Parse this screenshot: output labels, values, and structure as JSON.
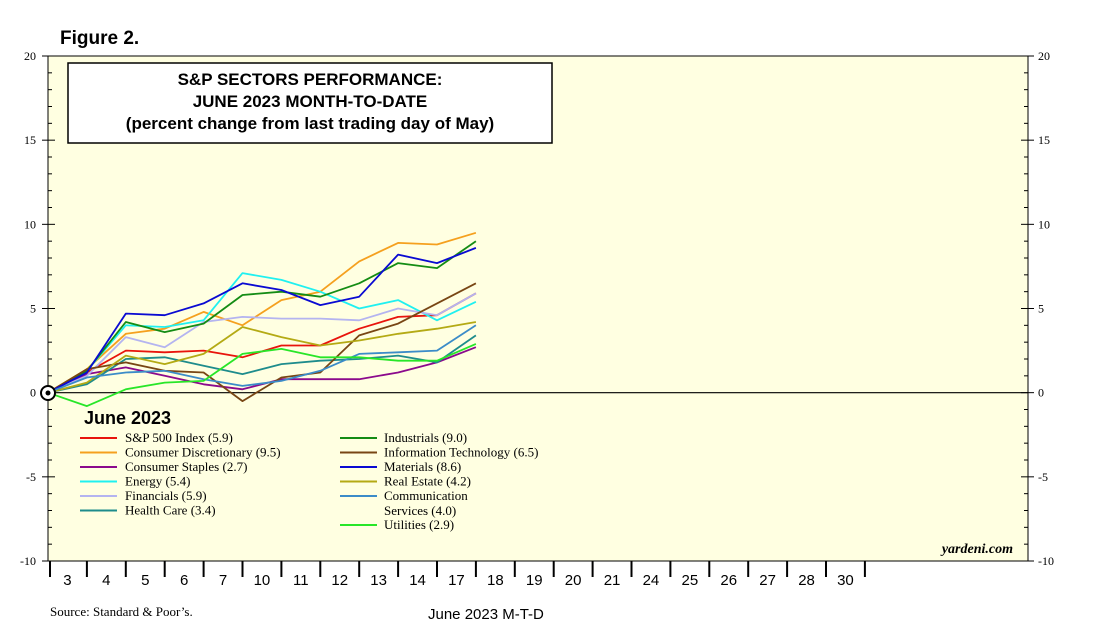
{
  "figure_label": "Figure 2.",
  "source": "Source: Standard & Poor’s.",
  "watermark": "yardeni.com",
  "chart_data": {
    "type": "line",
    "title_lines": [
      "S&P SECTORS PERFORMANCE:",
      "JUNE 2023 MONTH-TO-DATE",
      "(percent change from last trading day of May)"
    ],
    "xlabel": "June 2023 M-T-D",
    "ylabel": "",
    "ylim": [
      -10,
      20
    ],
    "y_ticks": [
      -10,
      -5,
      0,
      5,
      10,
      15,
      20
    ],
    "x_categories": [
      "3",
      "4",
      "5",
      "6",
      "7",
      "10",
      "11",
      "12",
      "13",
      "14",
      "17",
      "18",
      "19",
      "20",
      "21",
      "24",
      "25",
      "26",
      "27",
      "28",
      "30"
    ],
    "x_points": [
      "3",
      "4",
      "5",
      "6",
      "7",
      "10",
      "11",
      "12",
      "13",
      "14",
      "17",
      "18"
    ],
    "legend_title": "June 2023",
    "series": [
      {
        "name": "S&P 500 Index (5.9)",
        "color": "#e8140c",
        "values": [
          0,
          1.2,
          2.5,
          2.4,
          2.5,
          2.1,
          2.8,
          2.8,
          3.8,
          4.5,
          4.6,
          5.9
        ]
      },
      {
        "name": "Consumer Discretionary (9.5)",
        "color": "#f5a01e",
        "values": [
          0,
          1.4,
          3.5,
          3.8,
          4.8,
          4.0,
          5.5,
          6.0,
          7.8,
          8.9,
          8.8,
          9.5
        ]
      },
      {
        "name": "Consumer Staples (2.7)",
        "color": "#8b0a8c",
        "values": [
          0,
          1.1,
          1.5,
          1.0,
          0.5,
          0.2,
          0.8,
          0.8,
          0.8,
          1.2,
          1.8,
          2.7
        ]
      },
      {
        "name": "Energy (5.4)",
        "color": "#20f0f0",
        "values": [
          0,
          1.3,
          4.0,
          3.9,
          4.3,
          7.1,
          6.7,
          6.0,
          5.0,
          5.5,
          4.3,
          5.4
        ]
      },
      {
        "name": "Financials (5.9)",
        "color": "#b4b4f0",
        "values": [
          0,
          1.0,
          3.3,
          2.7,
          4.2,
          4.5,
          4.4,
          4.4,
          4.3,
          5.0,
          4.6,
          5.9
        ]
      },
      {
        "name": "Health Care (3.4)",
        "color": "#1e8c8c",
        "values": [
          0,
          0.5,
          2.0,
          2.1,
          1.6,
          1.1,
          1.7,
          1.9,
          2.0,
          2.2,
          1.8,
          3.4
        ]
      },
      {
        "name": "Industrials (9.0)",
        "color": "#148c14",
        "values": [
          0,
          1.3,
          4.2,
          3.6,
          4.1,
          5.8,
          6.0,
          5.7,
          6.5,
          7.7,
          7.4,
          9.0
        ]
      },
      {
        "name": "Information Technology (6.5)",
        "color": "#784614",
        "values": [
          0,
          1.4,
          1.8,
          1.3,
          1.2,
          -0.5,
          0.9,
          1.2,
          3.4,
          4.1,
          5.3,
          6.5
        ]
      },
      {
        "name": "Materials (8.6)",
        "color": "#0a0ad2",
        "values": [
          0,
          1.2,
          4.7,
          4.6,
          5.3,
          6.5,
          6.1,
          5.2,
          5.7,
          8.2,
          7.7,
          8.6
        ]
      },
      {
        "name": "Real Estate (4.2)",
        "color": "#b4aa14",
        "values": [
          0,
          0.6,
          2.2,
          1.7,
          2.3,
          3.9,
          3.3,
          2.8,
          3.1,
          3.5,
          3.8,
          4.2
        ]
      },
      {
        "name": "Communication Services (4.0)",
        "color": "#3c8cc8",
        "values": [
          0,
          0.9,
          1.2,
          1.3,
          0.8,
          0.4,
          0.7,
          1.3,
          2.3,
          2.4,
          2.5,
          4.0
        ]
      },
      {
        "name": "Utilities (2.9)",
        "color": "#28e628",
        "values": [
          0,
          -0.8,
          0.2,
          0.6,
          0.7,
          2.3,
          2.6,
          2.1,
          2.1,
          1.9,
          1.9,
          2.9
        ]
      }
    ],
    "legend_left": [
      {
        "label": "S&P 500 Index (5.9)",
        "color": "#e8140c"
      },
      {
        "label": "Consumer Discretionary (9.5)",
        "color": "#f5a01e"
      },
      {
        "label": "Consumer Staples (2.7)",
        "color": "#8b0a8c"
      },
      {
        "label": "Energy (5.4)",
        "color": "#20f0f0"
      },
      {
        "label": "Financials (5.9)",
        "color": "#b4b4f0"
      },
      {
        "label": "Health Care (3.4)",
        "color": "#1e8c8c"
      }
    ],
    "legend_right": [
      {
        "label": "Industrials (9.0)",
        "color": "#148c14"
      },
      {
        "label": "Information Technology (6.5)",
        "color": "#784614"
      },
      {
        "label": "Materials (8.6)",
        "color": "#0a0ad2"
      },
      {
        "label": "Real Estate (4.2)",
        "color": "#b4aa14"
      },
      {
        "label": "Communication",
        "color": "#3c8cc8"
      },
      {
        "label": "Services (4.0)",
        "color": ""
      },
      {
        "label": "Utilities (2.9)",
        "color": "#28e628"
      }
    ],
    "background_color": "#ffffe1"
  }
}
